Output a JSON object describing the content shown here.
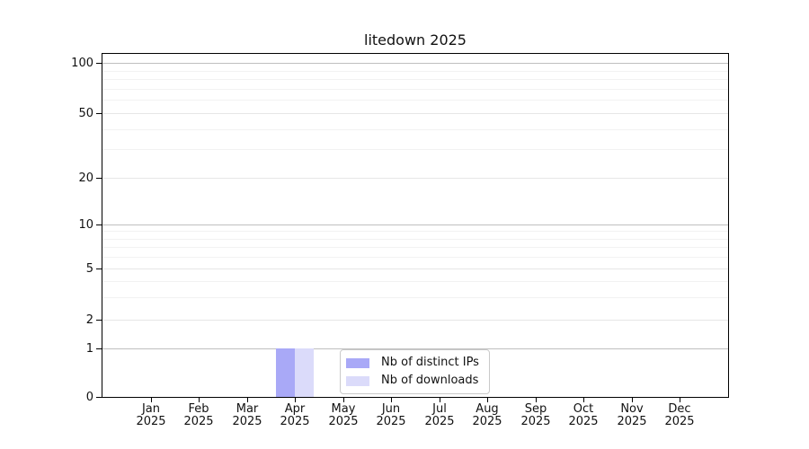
{
  "chart_data": {
    "type": "bar",
    "title": "litedown 2025",
    "x": {
      "months": [
        "Jan",
        "Feb",
        "Mar",
        "Apr",
        "May",
        "Jun",
        "Jul",
        "Aug",
        "Sep",
        "Oct",
        "Nov",
        "Dec"
      ],
      "year_label": "2025"
    },
    "y": {
      "scale": "log-like",
      "tick_values": [
        0,
        1,
        2,
        5,
        10,
        20,
        50,
        100
      ],
      "minor_tick_values": [
        3,
        4,
        6,
        7,
        8,
        9,
        30,
        40,
        60,
        70,
        80,
        90
      ],
      "emphasized_tick_values": [
        1,
        10,
        100
      ]
    },
    "series": [
      {
        "name": "Nb of distinct IPs",
        "color": "#a9a9f7",
        "values": [
          0,
          0,
          0,
          1,
          0,
          0,
          0,
          0,
          0,
          0,
          0,
          0
        ]
      },
      {
        "name": "Nb of downloads",
        "color": "#dbdbfa",
        "values": [
          0,
          0,
          0,
          1,
          0,
          0,
          0,
          0,
          0,
          0,
          0,
          0
        ]
      }
    ],
    "legend": {
      "entries": [
        "Nb of distinct IPs",
        "Nb of downloads"
      ]
    },
    "grid": "horizontal-only",
    "legend_position": "inside-bottom-center"
  },
  "colors": {
    "background": "#ffffff",
    "spine": "#000000",
    "grid_major": "#bfbfbf",
    "grid_mid": "#e6e6e6",
    "grid_minor": "#f2f2f2",
    "text": "#111111",
    "legend_border": "#c9c9c9"
  }
}
